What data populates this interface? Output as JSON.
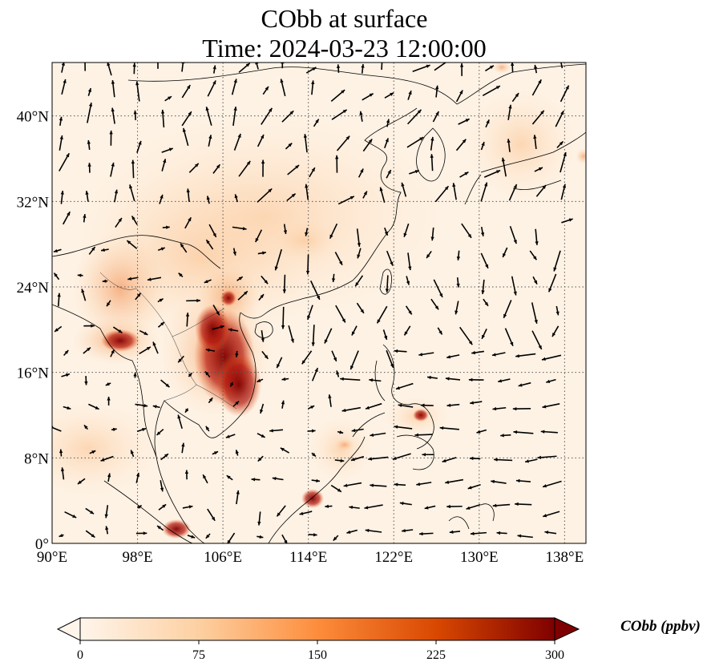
{
  "figure": {
    "title_line1": "CObb at surface",
    "title_line2": "Time: 2024-03-23 12:00:00"
  },
  "map": {
    "lon_range": [
      90,
      140
    ],
    "lat_range": [
      0,
      45
    ],
    "lon_ticks": [
      "90°E",
      "98°E",
      "106°E",
      "114°E",
      "122°E",
      "130°E",
      "138°E"
    ],
    "lat_ticks": [
      "0°",
      "8°N",
      "16°N",
      "24°N",
      "32°N",
      "40°N"
    ],
    "grid": "dotted",
    "field": "CObb",
    "wind_vectors": true
  },
  "colorbar": {
    "label": "CObb (ppbv)",
    "ticks": [
      "0",
      "75",
      "150",
      "225",
      "300"
    ],
    "range": [
      0,
      300
    ],
    "extend": "both",
    "colormap": [
      "#fff5eb",
      "#fdd0a2",
      "#fd8d3c",
      "#d94801",
      "#7f0000"
    ]
  }
}
